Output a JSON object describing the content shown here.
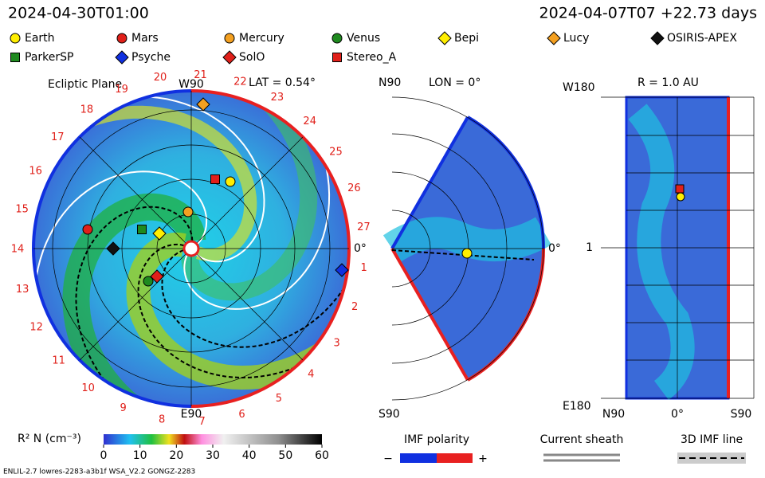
{
  "header": {
    "time": "2024-04-30T01:00",
    "run": "2024-04-07T07 +22.73 days"
  },
  "legend": [
    {
      "name": "Earth",
      "shape": "circle",
      "color": "#ffee00"
    },
    {
      "name": "Mars",
      "shape": "circle",
      "color": "#e0201a"
    },
    {
      "name": "Mercury",
      "shape": "circle",
      "color": "#f4a020"
    },
    {
      "name": "Venus",
      "shape": "circle",
      "color": "#1f8a1f"
    },
    {
      "name": "Bepi",
      "shape": "diamond",
      "color": "#ffee00"
    },
    {
      "name": "Lucy",
      "shape": "diamond",
      "color": "#f4a020"
    },
    {
      "name": "OSIRIS-APEX",
      "shape": "diamond",
      "color": "#111111"
    },
    {
      "name": "ParkerSP",
      "shape": "square",
      "color": "#1f8a1f"
    },
    {
      "name": "Psyche",
      "shape": "diamond",
      "color": "#1030e0"
    },
    {
      "name": "SolO",
      "shape": "diamond",
      "color": "#e0201a"
    },
    {
      "name": "Stereo_A",
      "shape": "square",
      "color": "#e0201a"
    }
  ],
  "ecliptic": {
    "title": "Ecliptic Plane",
    "top": "W90",
    "lat": "LAT = 0.54°",
    "right": "0°",
    "bottom": "E90",
    "carrington": [
      "1",
      "2",
      "3",
      "4",
      "5",
      "6",
      "7",
      "8",
      "9",
      "10",
      "11",
      "12",
      "13",
      "14",
      "15",
      "16",
      "17",
      "18",
      "19",
      "20",
      "21",
      "22",
      "23",
      "24",
      "25",
      "26",
      "27"
    ]
  },
  "meridional": {
    "top": "N90",
    "lon": "LON = 0°",
    "right": "0°",
    "bottom": "S90"
  },
  "map": {
    "top": "W180",
    "radius": "R = 1.0 AU",
    "middle": "1",
    "bottom": "E180",
    "x_left": "N90",
    "x_mid": "0°",
    "x_right": "S90"
  },
  "colorbar": {
    "label": "R² N (cm⁻³)",
    "lim": [
      0,
      60
    ],
    "ticks": [
      0,
      10,
      20,
      30,
      40,
      50,
      60
    ]
  },
  "keys": {
    "polarity": "IMF polarity",
    "minus": "−",
    "plus": "+",
    "sheath": "Current sheath",
    "imf_line": "3D IMF line"
  },
  "footer": "ENLIL-2.7 lowres-2283-a3b1f WSA_V2.2 GONGZ-2283"
}
